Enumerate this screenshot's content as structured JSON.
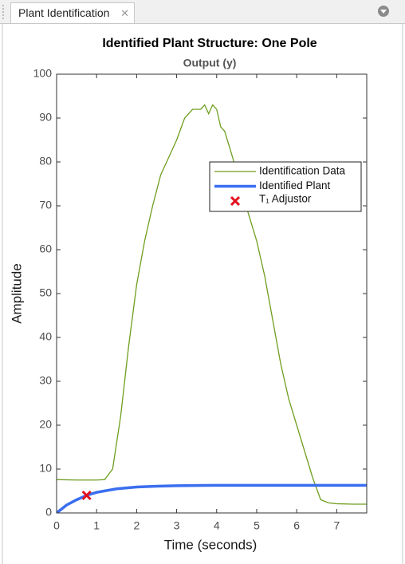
{
  "tab": {
    "label": "Plant Identification"
  },
  "chart_data": {
    "type": "line",
    "title": "Identified Plant Structure: One Pole",
    "subtitle": "Output (y)",
    "xlabel": "Time (seconds)",
    "ylabel": "Amplitude",
    "xlim": [
      0,
      7.75
    ],
    "ylim": [
      0,
      100
    ],
    "xticks": [
      0,
      1,
      2,
      3,
      4,
      5,
      6,
      7
    ],
    "yticks": [
      0,
      10,
      20,
      30,
      40,
      50,
      60,
      70,
      80,
      90,
      100
    ],
    "grid": false,
    "series": [
      {
        "name": "Identification Data",
        "color": "#6f9e1f",
        "x": [
          0,
          0.5,
          1.0,
          1.2,
          1.4,
          1.6,
          1.8,
          2.0,
          2.2,
          2.4,
          2.6,
          2.8,
          3.0,
          3.2,
          3.4,
          3.6,
          3.7,
          3.8,
          3.9,
          4.0,
          4.1,
          4.2,
          4.4,
          4.6,
          4.8,
          5.0,
          5.2,
          5.4,
          5.6,
          5.8,
          6.0,
          6.2,
          6.4,
          6.6,
          6.8,
          7.0,
          7.4,
          7.75
        ],
        "values": [
          7.6,
          7.5,
          7.5,
          7.6,
          10,
          22,
          38,
          52,
          62,
          70,
          77,
          81,
          85,
          90,
          92,
          92,
          93,
          91,
          93,
          92,
          88,
          87,
          81,
          74,
          68,
          62,
          54,
          44,
          34,
          26,
          20,
          14,
          8,
          3,
          2.3,
          2.1,
          2.0,
          2.0
        ]
      },
      {
        "name": "Identified Plant",
        "color": "#3a6ef0",
        "x": [
          0,
          0.25,
          0.5,
          0.75,
          1.0,
          1.5,
          2.0,
          2.5,
          3.0,
          4.0,
          5.0,
          6.0,
          7.75
        ],
        "values": [
          0,
          1.8,
          3.0,
          4.0,
          4.7,
          5.5,
          5.9,
          6.1,
          6.2,
          6.3,
          6.3,
          6.3,
          6.3
        ]
      }
    ],
    "marker": {
      "name": "T₁ Adjustor",
      "color": "#e3101e",
      "x": 0.75,
      "y": 4
    }
  }
}
